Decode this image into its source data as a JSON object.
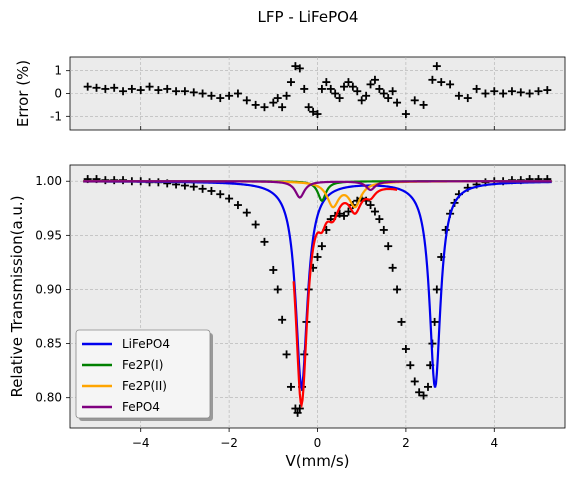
{
  "title": "LFP - LiFePO4",
  "chart_data": [
    {
      "type": "scatter",
      "panel": "error",
      "ylabel": "Error (%)",
      "xlabel": "",
      "xlim": [
        -5.6,
        5.6
      ],
      "ylim": [
        -1.6,
        1.6
      ],
      "yticks": [
        -1,
        0,
        1
      ],
      "xticks": [
        -4,
        -2,
        0,
        2,
        4
      ],
      "grid": true,
      "series": [
        {
          "marker": "+",
          "color": "#000000",
          "x": [
            -5.2,
            -5.0,
            -4.8,
            -4.6,
            -4.4,
            -4.2,
            -4.0,
            -3.8,
            -3.6,
            -3.4,
            -3.2,
            -3.0,
            -2.8,
            -2.6,
            -2.4,
            -2.2,
            -2.0,
            -1.8,
            -1.6,
            -1.4,
            -1.2,
            -1.0,
            -0.9,
            -0.8,
            -0.7,
            -0.6,
            -0.5,
            -0.4,
            -0.3,
            -0.2,
            -0.1,
            0.0,
            0.1,
            0.2,
            0.3,
            0.4,
            0.5,
            0.6,
            0.7,
            0.8,
            0.9,
            1.0,
            1.1,
            1.2,
            1.3,
            1.4,
            1.5,
            1.6,
            1.7,
            1.8,
            2.0,
            2.2,
            2.4,
            2.6,
            2.7,
            2.8,
            3.0,
            3.2,
            3.4,
            3.6,
            3.8,
            4.0,
            4.2,
            4.4,
            4.6,
            4.8,
            5.0,
            5.2
          ],
          "y": [
            0.3,
            0.25,
            0.2,
            0.25,
            0.1,
            0.2,
            0.15,
            0.3,
            0.15,
            0.2,
            0.1,
            0.1,
            0.05,
            0.0,
            -0.1,
            -0.2,
            -0.1,
            0.0,
            -0.3,
            -0.5,
            -0.6,
            -0.4,
            -0.2,
            -0.6,
            -0.1,
            0.5,
            1.2,
            1.1,
            0.2,
            -0.6,
            -0.8,
            -0.9,
            0.2,
            0.5,
            0.2,
            0.0,
            -0.2,
            0.3,
            0.5,
            0.3,
            0.1,
            -0.3,
            -0.1,
            0.4,
            0.6,
            0.2,
            0.0,
            -0.2,
            0.1,
            -0.4,
            -0.9,
            -0.3,
            -0.5,
            0.6,
            1.2,
            0.5,
            0.4,
            -0.1,
            -0.2,
            0.2,
            0.0,
            0.1,
            0.0,
            0.1,
            0.05,
            0.0,
            0.1,
            0.15
          ]
        }
      ]
    },
    {
      "type": "line",
      "panel": "main",
      "xlabel": "V(mm/s)",
      "ylabel": "Relative Transmission(a.u.)",
      "xlim": [
        -5.6,
        5.6
      ],
      "ylim": [
        0.772,
        1.015
      ],
      "yticks": [
        0.8,
        0.85,
        0.9,
        0.95,
        1.0
      ],
      "yticklabels": [
        "0.80",
        "0.85",
        "0.90",
        "0.95",
        "1.00"
      ],
      "xticks": [
        -4,
        -2,
        0,
        2,
        4
      ],
      "xticklabels": [
        "−4",
        "−2",
        "0",
        "2",
        "4"
      ],
      "grid": true,
      "legend_position": "lower-left",
      "data_series": {
        "marker": "+",
        "color": "#000000",
        "x": [
          -5.2,
          -5.0,
          -4.8,
          -4.6,
          -4.4,
          -4.2,
          -4.0,
          -3.8,
          -3.6,
          -3.4,
          -3.2,
          -3.0,
          -2.8,
          -2.6,
          -2.4,
          -2.2,
          -2.0,
          -1.8,
          -1.6,
          -1.4,
          -1.2,
          -1.0,
          -0.9,
          -0.8,
          -0.7,
          -0.6,
          -0.5,
          -0.45,
          -0.4,
          -0.35,
          -0.3,
          -0.25,
          -0.2,
          -0.1,
          0.0,
          0.1,
          0.2,
          0.3,
          0.4,
          0.5,
          0.6,
          0.7,
          0.8,
          0.9,
          1.0,
          1.1,
          1.2,
          1.3,
          1.4,
          1.5,
          1.6,
          1.7,
          1.8,
          1.9,
          2.0,
          2.1,
          2.2,
          2.3,
          2.4,
          2.5,
          2.55,
          2.6,
          2.65,
          2.7,
          2.8,
          2.9,
          3.0,
          3.1,
          3.2,
          3.4,
          3.6,
          3.8,
          4.0,
          4.2,
          4.4,
          4.6,
          4.8,
          5.0,
          5.2
        ],
        "y": [
          1.002,
          1.002,
          1.001,
          1.001,
          1.001,
          1.0,
          1.0,
          0.999,
          0.999,
          0.998,
          0.997,
          0.996,
          0.995,
          0.993,
          0.991,
          0.988,
          0.984,
          0.978,
          0.971,
          0.96,
          0.944,
          0.918,
          0.9,
          0.872,
          0.84,
          0.81,
          0.79,
          0.786,
          0.79,
          0.81,
          0.84,
          0.87,
          0.9,
          0.92,
          0.93,
          0.94,
          0.955,
          0.965,
          0.968,
          0.97,
          0.968,
          0.972,
          0.978,
          0.982,
          0.984,
          0.982,
          0.978,
          0.972,
          0.965,
          0.955,
          0.94,
          0.92,
          0.9,
          0.87,
          0.845,
          0.83,
          0.815,
          0.805,
          0.802,
          0.81,
          0.83,
          0.85,
          0.87,
          0.9,
          0.93,
          0.955,
          0.97,
          0.98,
          0.988,
          0.994,
          0.997,
          0.999,
          1.0,
          1.0,
          1.001,
          1.001,
          1.002,
          1.002,
          1.002
        ]
      },
      "series": [
        {
          "name": "LiFePO4",
          "color": "#0000ee",
          "center": [
            -0.36,
            2.66
          ],
          "depth": [
            0.19,
            0.19
          ],
          "gamma": [
            0.32,
            0.3
          ]
        },
        {
          "name": "Fe2P(I)",
          "color": "#008000",
          "center": [
            0.1
          ],
          "depth": [
            0.018
          ],
          "gamma": [
            0.22
          ]
        },
        {
          "name": "Fe2P(II)",
          "color": "#ffa500",
          "center": [
            0.35,
            0.85
          ],
          "depth": [
            0.022,
            0.022
          ],
          "gamma": [
            0.32,
            0.32
          ]
        },
        {
          "name": "FePO4",
          "color": "#800080",
          "center": [
            -0.4,
            1.2
          ],
          "depth": [
            0.015,
            0.008
          ],
          "gamma": [
            0.25,
            0.25
          ]
        }
      ],
      "envelope": {
        "color": "#ff0000",
        "x_range": [
          -0.55,
          1.8
        ]
      }
    }
  ]
}
